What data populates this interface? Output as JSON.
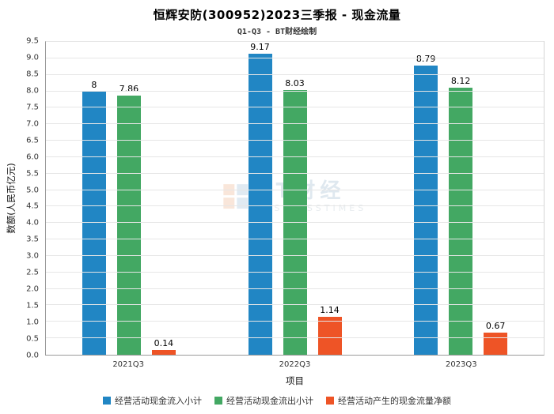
{
  "title": "恒辉安防(300952)2023三季报 - 现金流量",
  "subtitle": "Q1-Q3 - BT财经绘制",
  "watermark": {
    "text_main": "BT财经",
    "text_sub": "BUSINESSTIMES"
  },
  "chart_data": {
    "type": "bar",
    "title": "恒辉安防(300952)2023三季报 - 现金流量",
    "subtitle": "Q1-Q3 - BT财经绘制",
    "categories": [
      "2021Q3",
      "2022Q3",
      "2023Q3"
    ],
    "series": [
      {
        "name": "经营活动现金流入小计",
        "color": "#2186c4",
        "values": [
          8,
          9.17,
          8.79
        ]
      },
      {
        "name": "经营活动现金流出小计",
        "color": "#43a863",
        "values": [
          7.86,
          8.03,
          8.12
        ]
      },
      {
        "name": "经营活动产生的现金流量净额",
        "color": "#ee5426",
        "values": [
          0.14,
          1.14,
          0.67
        ]
      }
    ],
    "xlabel": "项目",
    "ylabel": "数额(人民币亿元)",
    "ylim": [
      0,
      9.5
    ],
    "ytick_step": 0.5,
    "grid": true,
    "legend_position": "bottom"
  }
}
